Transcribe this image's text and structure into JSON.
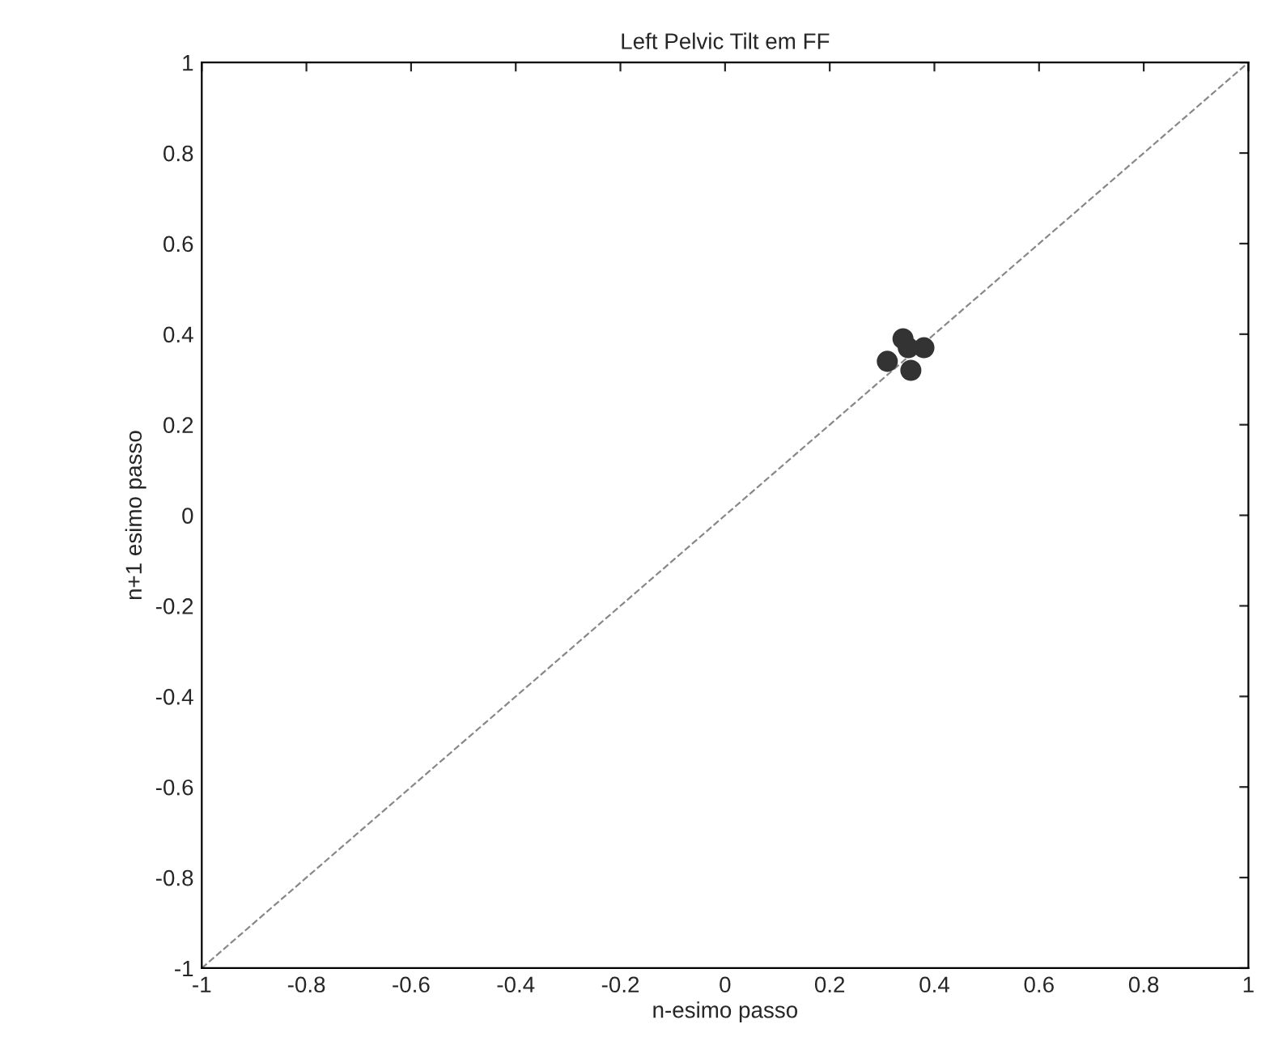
{
  "chart_data": {
    "type": "scatter",
    "title": "Left Pelvic Tilt em FF",
    "xlabel": "n-esimo passo",
    "ylabel": "n+1 esimo passo",
    "x": [
      0.31,
      0.34,
      0.35,
      0.355,
      0.38
    ],
    "series": [
      {
        "color": "#333333",
        "values": [
          0.34,
          0.39,
          0.37,
          0.32,
          0.37
        ]
      },
      {
        "type": "line",
        "x": [
          -1,
          1
        ],
        "values": [
          -1,
          1
        ],
        "color": "#888888",
        "line_style": "dashed",
        "marker": "none"
      }
    ],
    "marker": "circle",
    "xlim": [
      -1,
      1
    ],
    "ylim": [
      -1,
      1
    ],
    "xticks": [
      -1,
      -0.8,
      -0.6,
      -0.4,
      -0.2,
      0,
      0.2,
      0.4,
      0.6,
      0.8,
      1
    ],
    "yticks": [
      -1,
      -0.8,
      -0.6,
      -0.4,
      -0.2,
      0,
      0.2,
      0.4,
      0.6,
      0.8,
      1
    ],
    "grid": false,
    "legend": false
  }
}
